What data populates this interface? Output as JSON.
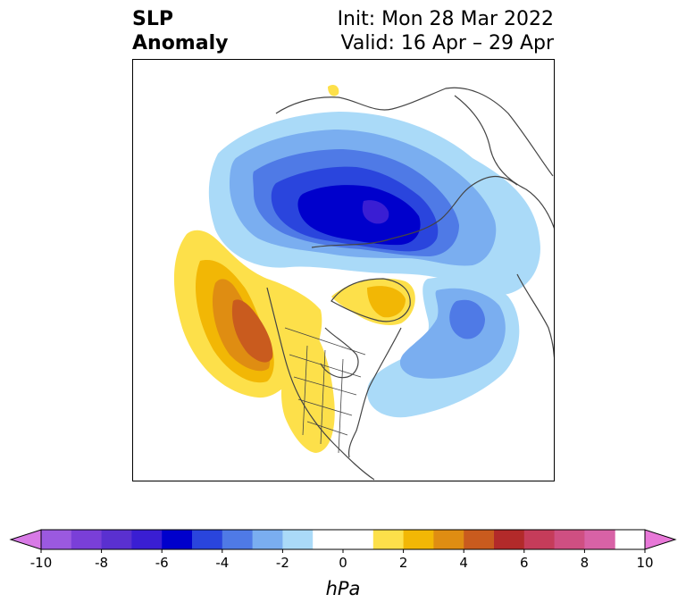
{
  "title": {
    "left_line1": "SLP",
    "left_line2": "Anomaly",
    "right_line1": "Init: Mon 28 Mar 2022",
    "right_line2": "Valid: 16 Apr – 29 Apr"
  },
  "colorbar": {
    "unit": "hPa",
    "tick_labels": [
      "-10",
      "-8",
      "-6",
      "-4",
      "-2",
      "0",
      "2",
      "4",
      "6",
      "8",
      "10"
    ],
    "bins": [
      {
        "range": "-10 to -9",
        "color": "#9b59e0"
      },
      {
        "range": "-9 to -8",
        "color": "#7a3fd8"
      },
      {
        "range": "-8 to -7",
        "color": "#5a30d0"
      },
      {
        "range": "-7 to -6",
        "color": "#3a1ed3"
      },
      {
        "range": "-6 to -5",
        "color": "#0000cc"
      },
      {
        "range": "-5 to -4",
        "color": "#2a45dd"
      },
      {
        "range": "-4 to -3",
        "color": "#4f7ae6"
      },
      {
        "range": "-3 to -2",
        "color": "#7aaef0"
      },
      {
        "range": "-2 to -1",
        "color": "#aadaf8"
      },
      {
        "range": "-1 to 1",
        "color": "#ffffff"
      },
      {
        "range": "1 to 2",
        "color": "#fde04a"
      },
      {
        "range": "2 to 3",
        "color": "#f2b705"
      },
      {
        "range": "3 to 4",
        "color": "#df8d12"
      },
      {
        "range": "4 to 5",
        "color": "#c95b1e"
      },
      {
        "range": "5 to 6",
        "color": "#b22a2a"
      },
      {
        "range": "6 to 7",
        "color": "#c53c5a"
      },
      {
        "range": "7 to 8",
        "color": "#cf4f82"
      },
      {
        "range": "8 to 9",
        "color": "#d862a6"
      }
    ],
    "under_color": "#d87ae6",
    "over_color": "#e878d8"
  }
}
